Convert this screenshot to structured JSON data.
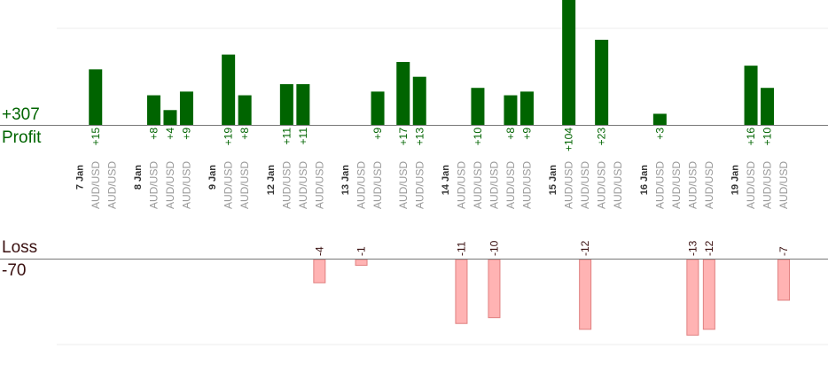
{
  "labels": {
    "profit_total": "+307",
    "profit_title": "Profit",
    "loss_title": "Loss",
    "loss_total": "-70"
  },
  "colors": {
    "profit_bar": "#006400",
    "profit_text": "#006400",
    "loss_bar": "#ffb3b3",
    "loss_bar_border": "#e08080",
    "loss_text": "#3a1010",
    "day_label": "#333333",
    "symbol_label": "#999999",
    "baseline": "#777777",
    "grid": "#eeeeee"
  },
  "chart_data": {
    "type": "bar",
    "profit_ylim": [
      0,
      24
    ],
    "loss_ylim": [
      0,
      13
    ],
    "grid": true,
    "slots": [
      {
        "day": "7 Jan"
      },
      {
        "symbol": "AUD/USD",
        "profit": 15,
        "profit_label": "+15"
      },
      {
        "symbol": "AUD/USD"
      },
      {
        "gap": true
      },
      {
        "day": "8 Jan"
      },
      {
        "symbol": "AUD/USD",
        "profit": 8,
        "profit_label": "+8"
      },
      {
        "symbol": "AUD/USD",
        "profit": 4,
        "profit_label": "+4"
      },
      {
        "symbol": "AUD/USD",
        "profit": 9,
        "profit_label": "+9"
      },
      {
        "gap": true
      },
      {
        "day": "9 Jan"
      },
      {
        "symbol": "AUD/USD",
        "profit": 19,
        "profit_label": "+19"
      },
      {
        "symbol": "AUD/USD",
        "profit": 8,
        "profit_label": "+8"
      },
      {
        "gap": true
      },
      {
        "day": "12 Jan"
      },
      {
        "symbol": "AUD/USD",
        "profit": 11,
        "profit_label": "+11"
      },
      {
        "symbol": "AUD/USD",
        "profit": 11,
        "profit_label": "+11"
      },
      {
        "symbol": "AUD/USD",
        "loss": 4,
        "loss_label": "-4"
      },
      {
        "gap": true
      },
      {
        "day": "13 Jan"
      },
      {
        "symbol": "AUD/USD",
        "loss": 1,
        "loss_label": "-1"
      },
      {
        "symbol": "AUD/USD",
        "profit": 9,
        "profit_label": "+9"
      },
      {
        "gap": true
      },
      {
        "symbol": "AUD/USD",
        "profit": 17,
        "profit_label": "+17"
      },
      {
        "symbol": "AUD/USD",
        "profit": 13,
        "profit_label": "+13"
      },
      {
        "gap": true
      },
      {
        "day": "14 Jan"
      },
      {
        "symbol": "AUD/USD",
        "loss": 11,
        "loss_label": "-11"
      },
      {
        "symbol": "AUD/USD",
        "profit": 10,
        "profit_label": "+10"
      },
      {
        "symbol": "AUD/USD",
        "loss": 10,
        "loss_label": "-10"
      },
      {
        "symbol": "AUD/USD",
        "profit": 8,
        "profit_label": "+8"
      },
      {
        "symbol": "AUD/USD",
        "profit": 9,
        "profit_label": "+9"
      },
      {
        "gap": true
      },
      {
        "day": "15 Jan"
      },
      {
        "symbol": "AUD/USD",
        "profit": 104,
        "profit_label": "+104"
      },
      {
        "symbol": "AUD/USD",
        "loss": 12,
        "loss_label": "-12"
      },
      {
        "symbol": "AUD/USD",
        "profit": 23,
        "profit_label": "+23"
      },
      {
        "symbol": "AUD/USD"
      },
      {
        "gap": true
      },
      {
        "day": "16 Jan"
      },
      {
        "symbol": "AUD/USD",
        "profit": 3,
        "profit_label": "+3"
      },
      {
        "symbol": "AUD/USD"
      },
      {
        "symbol": "AUD/USD",
        "loss": 13,
        "loss_label": "-13"
      },
      {
        "symbol": "AUD/USD",
        "loss": 12,
        "loss_label": "-12"
      },
      {
        "gap": true
      },
      {
        "day": "19 Jan"
      },
      {
        "symbol": "AUD/USD",
        "profit": 16,
        "profit_label": "+16"
      },
      {
        "symbol": "AUD/USD",
        "profit": 10,
        "profit_label": "+10"
      },
      {
        "symbol": "AUD/USD",
        "loss": 7,
        "loss_label": "-7"
      }
    ]
  }
}
